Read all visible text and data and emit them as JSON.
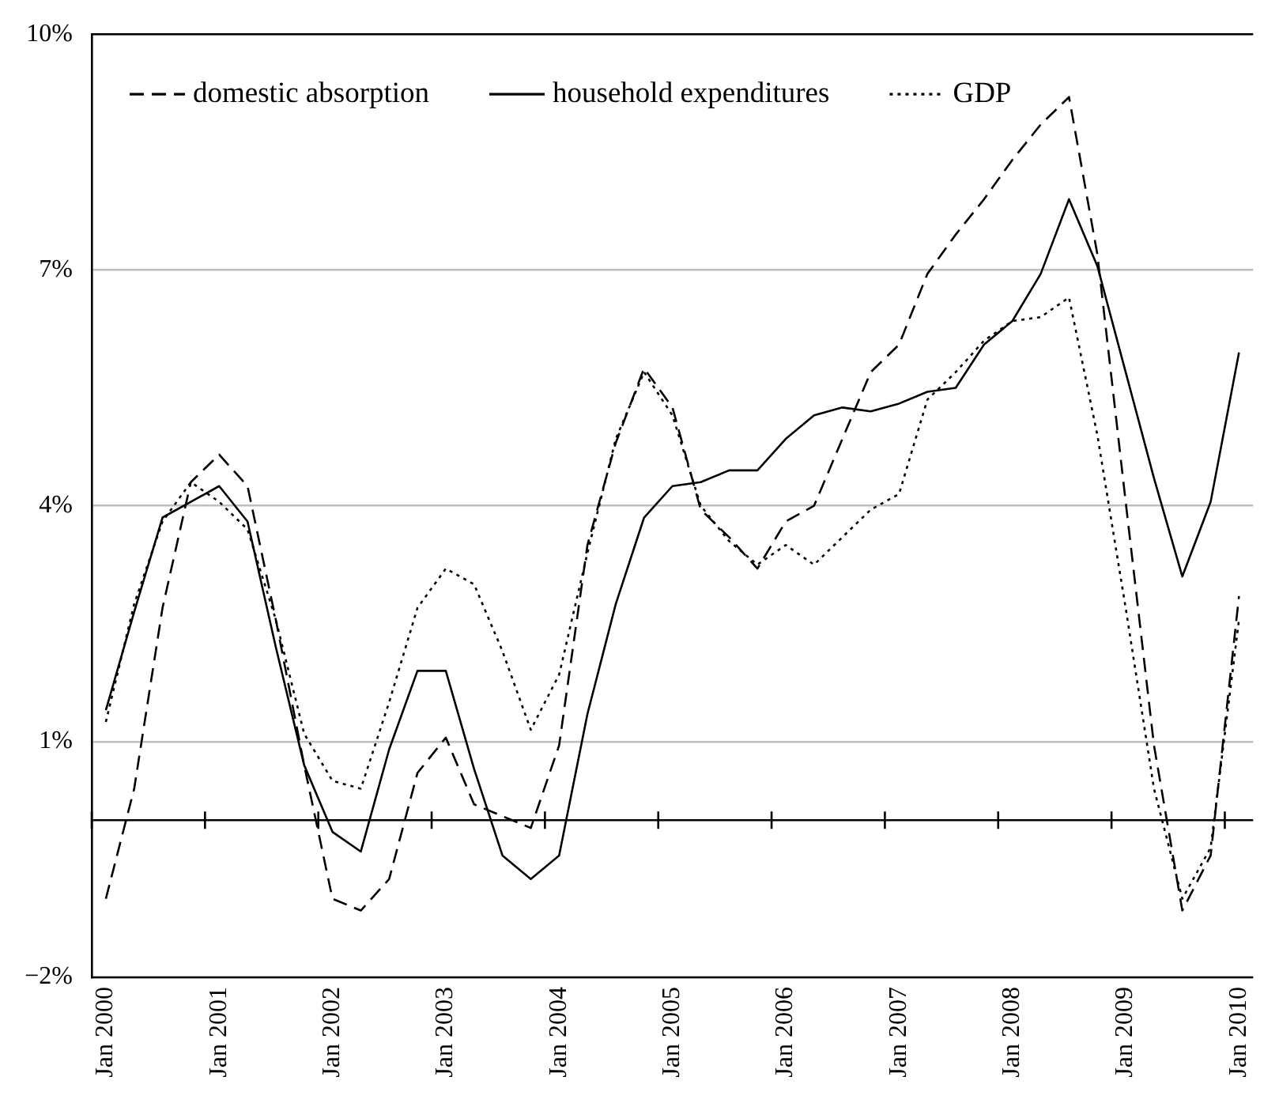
{
  "chart_data": {
    "type": "line",
    "categories": [
      "Jan 2000",
      null,
      null,
      null,
      "Jan 2001",
      null,
      null,
      null,
      "Jan 2002",
      null,
      null,
      null,
      "Jan 2003",
      null,
      null,
      null,
      "Jan 2004",
      null,
      null,
      null,
      "Jan 2005",
      null,
      null,
      null,
      "Jan 2006",
      null,
      null,
      null,
      "Jan 2007",
      null,
      null,
      null,
      "Jan 2008",
      null,
      null,
      null,
      "Jan 2009",
      null,
      null,
      null,
      "Jan 2010"
    ],
    "series": [
      {
        "name": "domestic absorption",
        "color": "#000000",
        "line_style": "dashed",
        "values": [
          -1.0,
          0.4,
          2.7,
          4.3,
          4.65,
          4.25,
          2.55,
          0.7,
          -1.0,
          -1.15,
          -0.75,
          0.6,
          1.05,
          0.2,
          0.05,
          -0.1,
          0.95,
          3.5,
          4.8,
          5.75,
          5.25,
          3.95,
          3.6,
          3.2,
          3.8,
          4.0,
          4.85,
          5.7,
          6.05,
          6.95,
          7.45,
          7.9,
          8.4,
          8.85,
          9.2,
          7.2,
          4.05,
          0.95,
          -1.15,
          -0.45,
          2.85
        ]
      },
      {
        "name": "household expenditures",
        "color": "#000000",
        "line_style": "solid",
        "values": [
          1.4,
          2.65,
          3.85,
          4.05,
          4.25,
          3.8,
          2.2,
          0.7,
          -0.15,
          -0.4,
          0.9,
          1.9,
          1.9,
          0.65,
          -0.45,
          -0.75,
          -0.45,
          1.35,
          2.75,
          3.85,
          4.25,
          4.3,
          4.45,
          4.45,
          4.85,
          5.15,
          5.25,
          5.2,
          5.3,
          5.45,
          5.5,
          6.05,
          6.35,
          6.95,
          7.9,
          7.05,
          5.7,
          4.35,
          3.1,
          4.05,
          5.95
        ]
      },
      {
        "name": "GDP",
        "color": "#000000",
        "line_style": "dotted",
        "values": [
          1.25,
          2.75,
          3.8,
          4.3,
          4.05,
          3.7,
          2.55,
          1.1,
          0.5,
          0.4,
          1.5,
          2.7,
          3.2,
          3.0,
          2.15,
          1.15,
          1.85,
          3.4,
          4.85,
          5.7,
          5.15,
          4.0,
          3.55,
          3.25,
          3.5,
          3.25,
          3.6,
          3.95,
          4.15,
          5.35,
          5.7,
          6.1,
          6.35,
          6.4,
          6.65,
          4.9,
          2.7,
          0.4,
          -1.0,
          -0.35,
          2.55
        ]
      }
    ],
    "ylim": [
      -2,
      10
    ],
    "yticks": [
      {
        "value": -2,
        "label": "−2%"
      },
      {
        "value": 1,
        "label": "1%"
      },
      {
        "value": 4,
        "label": "4%"
      },
      {
        "value": 7,
        "label": "7%"
      },
      {
        "value": 10,
        "label": "10%"
      }
    ],
    "grid": "y",
    "legend": "top left",
    "ref_lines": [
      {
        "axis": "y",
        "value": 0,
        "color": "#000000"
      }
    ]
  }
}
